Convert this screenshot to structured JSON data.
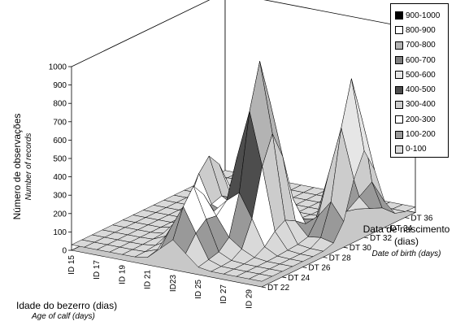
{
  "chart_data": {
    "type": "surface3d",
    "title": "",
    "zlabel": "Número de observações",
    "zlabel_sub": "Number of records",
    "xlabel": "Idade do bezerro (dias)",
    "xlabel_sub": "Age of calf (days)",
    "ylabel_line1": "Data de nascimento",
    "ylabel_line2": "(dias)",
    "ylabel_sub": "Date of birth (days)",
    "zlim": [
      0,
      1000
    ],
    "z_ticks": [
      "0",
      "100",
      "200",
      "300",
      "400",
      "500",
      "600",
      "700",
      "800",
      "900",
      "1000"
    ],
    "x_ticks": [
      "ID 15",
      "ID 17",
      "ID 19",
      "ID 21",
      "ID23",
      "ID 25",
      "ID 27",
      "ID 29"
    ],
    "y_ticks": [
      "DT 22",
      "DT 24",
      "DT 26",
      "DT 28",
      "DT 30",
      "DT 32",
      "DT 34",
      "DT 36"
    ],
    "legend": [
      {
        "label": "900-1000",
        "color": "#000000"
      },
      {
        "label": "800-900",
        "color": "#ffffff"
      },
      {
        "label": "700-800",
        "color": "#b3b3b3"
      },
      {
        "label": "600-700",
        "color": "#7f7f7f"
      },
      {
        "label": "500-600",
        "color": "#e6e6e6"
      },
      {
        "label": "400-500",
        "color": "#4d4d4d"
      },
      {
        "label": "300-400",
        "color": "#cccccc"
      },
      {
        "label": "200-300",
        "color": "#ffffff"
      },
      {
        "label": "100-200",
        "color": "#999999"
      },
      {
        "label": "0-100",
        "color": "#d9d9d9"
      }
    ],
    "peaks": [
      {
        "id": "ID 25",
        "dt": "DT 28",
        "value": 1000
      },
      {
        "id": "ID 29",
        "dt": "DT 32",
        "value": 850
      },
      {
        "id": "ID 21",
        "dt": "DT 28",
        "value": 430
      },
      {
        "id": "ID 23",
        "dt": "DT 24",
        "value": 400
      }
    ]
  }
}
